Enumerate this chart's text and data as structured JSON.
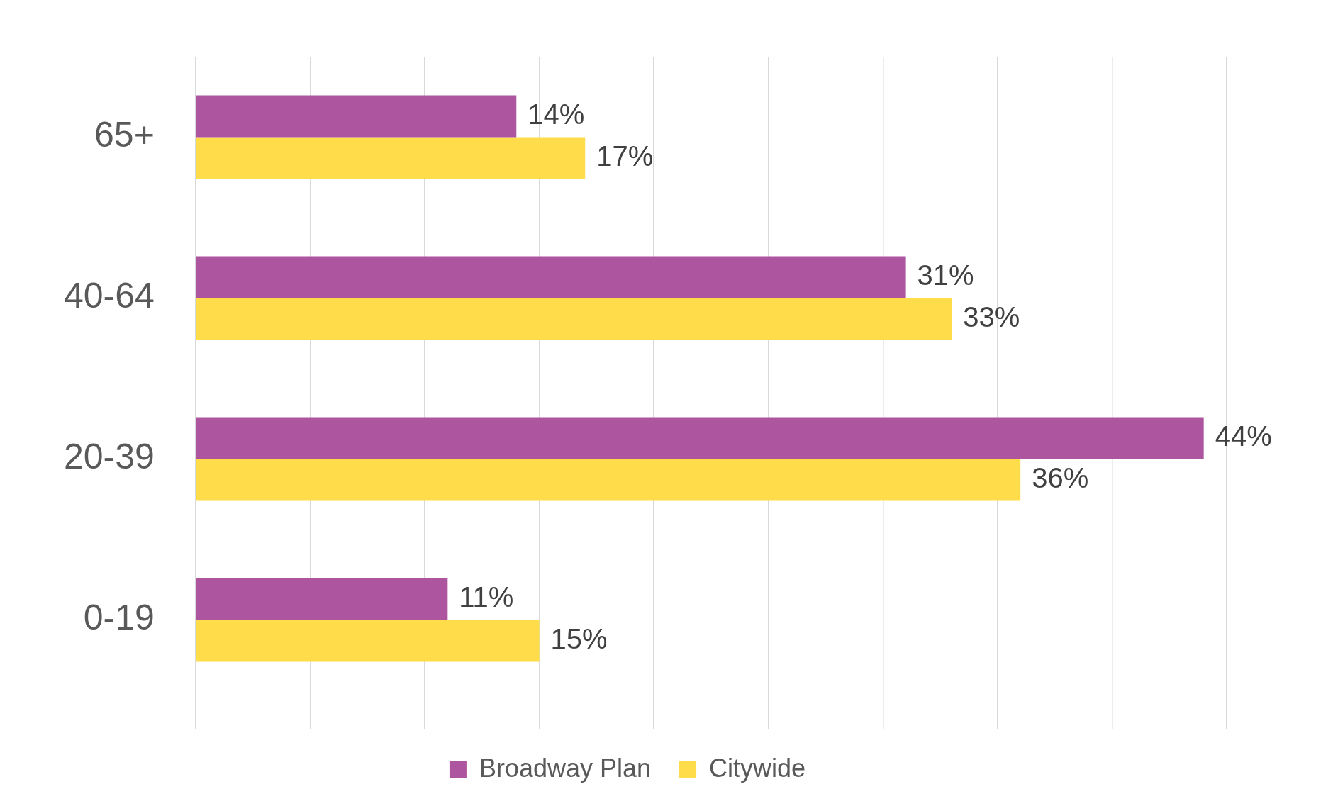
{
  "chart_data": {
    "type": "bar",
    "orientation": "horizontal",
    "categories": [
      "65+",
      "40-64",
      "20-39",
      "0-19"
    ],
    "series": [
      {
        "name": "Broadway Plan",
        "color": "#ad559f",
        "values": [
          14,
          31,
          44,
          11
        ],
        "value_labels": [
          "14%",
          "31%",
          "44%",
          "11%"
        ]
      },
      {
        "name": "Citywide",
        "color": "#ffdc4a",
        "values": [
          17,
          33,
          36,
          15
        ],
        "value_labels": [
          "17%",
          "33%",
          "36%",
          "15%"
        ]
      }
    ],
    "xlim": [
      0,
      45
    ],
    "xticks": [
      {
        "value": 0,
        "label": null
      },
      {
        "value": 5,
        "label": null
      },
      {
        "value": 10,
        "label": null
      },
      {
        "value": 15,
        "label": null
      },
      {
        "value": 20,
        "label": null
      },
      {
        "value": 25,
        "label": null
      },
      {
        "value": 30,
        "label": null
      },
      {
        "value": 35,
        "label": null
      },
      {
        "value": 40,
        "label": null
      },
      {
        "value": 45,
        "label": null
      }
    ],
    "tick_labels": "y",
    "grid": "x",
    "legend": "bottom"
  }
}
